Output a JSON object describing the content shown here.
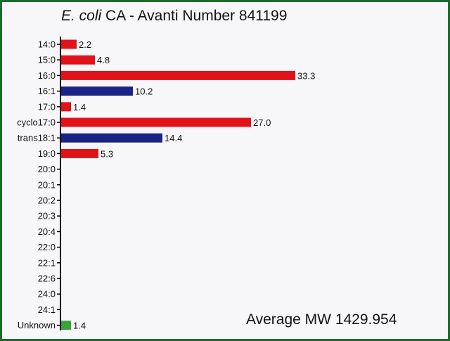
{
  "title_italic": "E. coli",
  "title_rest": " CA - Avanti Number 841199",
  "annotation": "Average MW 1429.954",
  "colors": {
    "saturated": "#e0131b",
    "unsaturated": "#1b2485",
    "unknown": "#3aa33a",
    "axis": "#000000",
    "frame": "#1f6b2e"
  },
  "chart_data": {
    "type": "bar",
    "orientation": "horizontal",
    "title": "E. coli CA - Avanti Number 841199",
    "categories": [
      "14:0",
      "15:0",
      "16:0",
      "16:1",
      "17:0",
      "cyclo17:0",
      "trans18:1",
      "19:0",
      "20:0",
      "20:1",
      "20:2",
      "20:3",
      "20:4",
      "22:0",
      "22:1",
      "22:6",
      "24:0",
      "24:1",
      "Unknown"
    ],
    "values": [
      2.2,
      4.8,
      33.3,
      10.2,
      1.4,
      27.0,
      14.4,
      5.3,
      null,
      null,
      null,
      null,
      null,
      null,
      null,
      null,
      null,
      null,
      1.4
    ],
    "value_labels": [
      "2.2",
      "4.8",
      "33.3",
      "10.2",
      "1.4",
      "27.0",
      "14.4",
      "5.3",
      "",
      "",
      "",
      "",
      "",
      "",
      "",
      "",
      "",
      "",
      "1.4"
    ],
    "bar_colors": [
      "saturated",
      "saturated",
      "saturated",
      "unsaturated",
      "saturated",
      "saturated",
      "unsaturated",
      "saturated",
      "",
      "",
      "",
      "",
      "",
      "",
      "",
      "",
      "",
      "",
      "unknown"
    ],
    "xlim": [
      0,
      40
    ],
    "grid": false,
    "legend": "none",
    "annotation": "Average MW 1429.954"
  }
}
